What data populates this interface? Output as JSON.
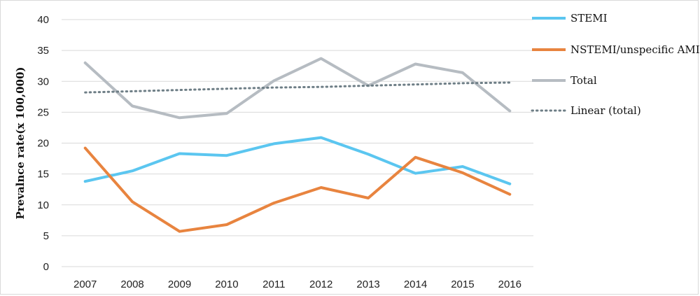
{
  "chart_data": {
    "type": "line",
    "ylabel": "Prevalnce rate(x 100,000)",
    "xlabel": "",
    "title": "",
    "categories": [
      "2007",
      "2008",
      "2009",
      "2010",
      "2011",
      "2012",
      "2013",
      "2014",
      "2015",
      "2016"
    ],
    "ylim": [
      0,
      40
    ],
    "yticks": [
      0,
      5,
      10,
      15,
      20,
      25,
      30,
      35,
      40
    ],
    "grid": "horizontal",
    "legend": "right",
    "series": [
      {
        "name": "STEMI",
        "color": "#5bc6f0",
        "style": "solid",
        "values": [
          13.8,
          15.5,
          18.3,
          18.0,
          19.9,
          20.9,
          18.2,
          15.1,
          16.2,
          13.4
        ]
      },
      {
        "name": "NSTEMI/unspecific AMI",
        "color": "#e8843f",
        "style": "solid",
        "values": [
          19.2,
          10.5,
          5.7,
          6.8,
          10.3,
          12.8,
          11.1,
          17.7,
          15.2,
          11.7
        ]
      },
      {
        "name": "Total",
        "color": "#b6bcc2",
        "style": "solid",
        "values": [
          33.0,
          26.0,
          24.1,
          24.8,
          30.1,
          33.7,
          29.3,
          32.8,
          31.4,
          25.2
        ]
      },
      {
        "name": "Linear (total)",
        "color": "#6e7e86",
        "style": "dotted",
        "values": [
          28.2,
          28.4,
          28.6,
          28.8,
          29.0,
          29.1,
          29.3,
          29.5,
          29.7,
          29.8
        ]
      }
    ]
  }
}
